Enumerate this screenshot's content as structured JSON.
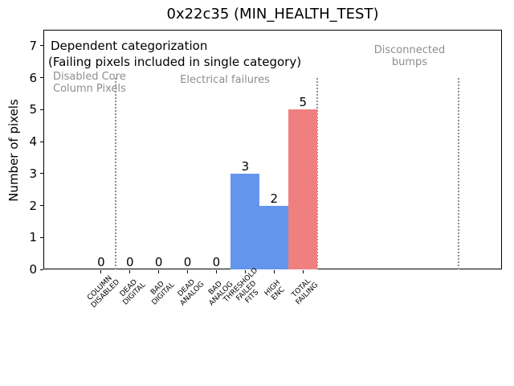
{
  "title": "0x22c35 (MIN_HEALTH_TEST)",
  "annotations": {
    "dependent_line1": "Dependent categorization",
    "dependent_line2": "(Failing pixels included in single category)",
    "section_disabled": "Disabled Core\nColumn Pixels",
    "section_electrical": "Electrical failures",
    "section_disconnected": "Disconnected\nbumps"
  },
  "colors": {
    "bar_blue": "#6495ed",
    "bar_red": "#f08080",
    "gray_text": "#8e8e8e",
    "separator_gray": "#8f8f8f",
    "axis": "#000000"
  },
  "chart_data": {
    "type": "bar",
    "title": "0x22c35 (MIN_HEALTH_TEST)",
    "xlabel": "",
    "ylabel": "Number of pixels",
    "ylim": [
      0,
      7.5
    ],
    "xlim": [
      -2,
      13.9
    ],
    "yticks": [
      0,
      1,
      2,
      3,
      4,
      5,
      6,
      7
    ],
    "grid": false,
    "legend": "none",
    "categories": [
      "COLUMN\nDISABLED",
      "DEAD\nDIGITAL",
      "BAD\nDIGITAL",
      "DEAD\nANALOG",
      "BAD\nANALOG",
      "THRESHOLD\nFAILED\nFITS",
      "HIGH\nENC",
      "TOTAL\nFAILING"
    ],
    "values": [
      0,
      0,
      0,
      0,
      0,
      3,
      2,
      5
    ],
    "bar_value_labels": [
      "0",
      "0",
      "0",
      "0",
      "0",
      "3",
      "2",
      "5"
    ],
    "bar_colors": [
      "#6495ed",
      "#6495ed",
      "#6495ed",
      "#6495ed",
      "#6495ed",
      "#6495ed",
      "#6495ed",
      "#f08080"
    ],
    "separators": {
      "x_positions": [
        0.5,
        7.5,
        12.4
      ],
      "y_span": [
        0,
        6
      ],
      "style": "dotted"
    }
  }
}
